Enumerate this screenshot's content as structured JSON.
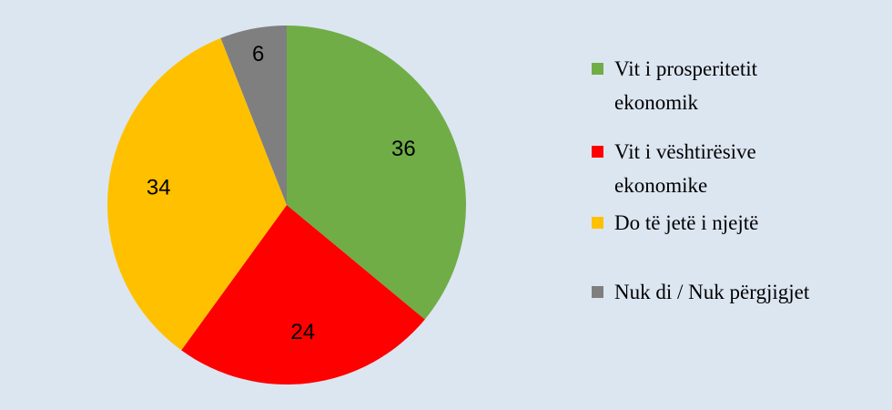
{
  "chart_data": {
    "type": "pie",
    "categories": [
      "Vit i prosperitetit ekonomik",
      "Vit i vështirësive ekonomike",
      "Do të jetë i njejtë",
      "Nuk di / Nuk përgjigjet"
    ],
    "values": [
      36,
      24,
      34,
      6
    ],
    "colors": [
      "#70ad47",
      "#ff0000",
      "#ffc000",
      "#7f7f7f"
    ]
  }
}
